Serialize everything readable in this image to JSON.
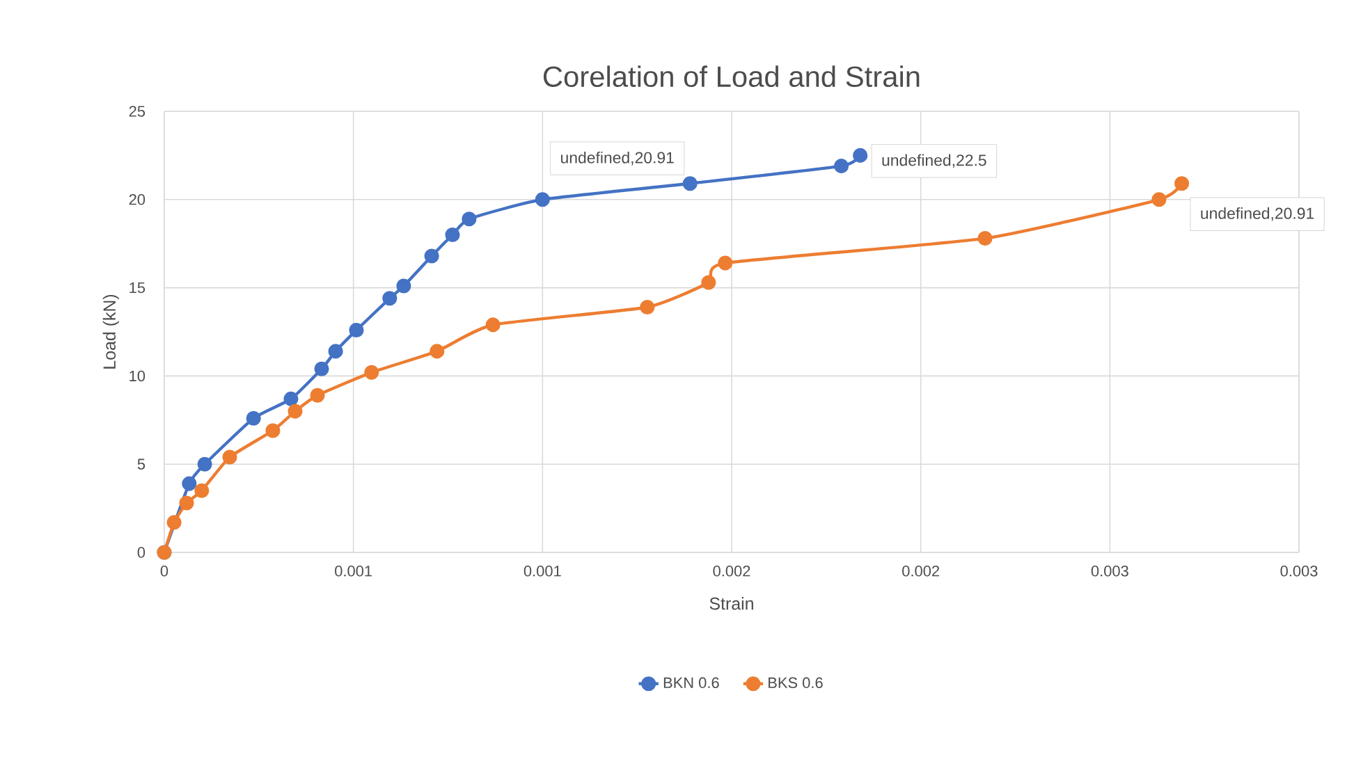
{
  "chart_data": {
    "type": "line",
    "title": "Corelation of Load and Strain",
    "xlabel": "Strain",
    "ylabel": "Load (kN)",
    "xlim": [
      0,
      0.003
    ],
    "xticks": [
      0,
      {
        "value": 0.0005,
        "label": "0.001"
      },
      {
        "value": 0.001,
        "label": "0.001"
      },
      {
        "value": 0.0015,
        "label": "0.002"
      },
      {
        "value": 0.002,
        "label": "0.002"
      },
      {
        "value": 0.0025,
        "label": "0.003"
      },
      {
        "value": 0.003,
        "label": "0.003"
      }
    ],
    "ylim": [
      0,
      25
    ],
    "yticks": [
      0,
      5,
      10,
      15,
      20,
      25
    ],
    "grid": true,
    "legend": "bottom",
    "marker": "circle",
    "line_style": "solid",
    "series": [
      {
        "name": "BKN 0.6",
        "color": "#4472c4",
        "x": [
          0,
          6.6e-05,
          0.000107,
          0.000236,
          0.000335,
          0.000416,
          0.000453,
          0.000508,
          0.000596,
          0.000633,
          0.000707,
          0.000762,
          0.000806,
          0.001,
          0.00139,
          0.00179,
          0.00184
        ],
        "values": [
          0,
          3.9,
          5.0,
          7.6,
          8.7,
          10.4,
          11.4,
          12.6,
          14.4,
          15.1,
          16.8,
          18.0,
          18.9,
          20.0,
          20.91,
          21.9,
          22.5
        ]
      },
      {
        "name": "BKS 0.6",
        "color": "#ed7d31",
        "x": [
          0,
          2.6e-05,
          5.9e-05,
          9.9e-05,
          0.000173,
          0.000287,
          0.000346,
          0.000405,
          0.000548,
          0.000721,
          0.000869,
          0.001277,
          0.001439,
          0.001483,
          0.00217,
          0.00263,
          0.00269
        ],
        "values": [
          0,
          1.7,
          2.8,
          3.5,
          5.4,
          6.9,
          8.0,
          8.9,
          10.2,
          11.4,
          12.9,
          13.9,
          15.3,
          16.4,
          17.8,
          20.0,
          20.91
        ]
      }
    ],
    "annotations": [
      {
        "text": "undefined,20.91",
        "x": 0.00139,
        "y": 20.91
      },
      {
        "text": "undefined,22.5",
        "x": 0.00184,
        "y": 22.5
      },
      {
        "text": "undefined,20.91",
        "x": 0.00269,
        "y": 20.91
      }
    ]
  }
}
